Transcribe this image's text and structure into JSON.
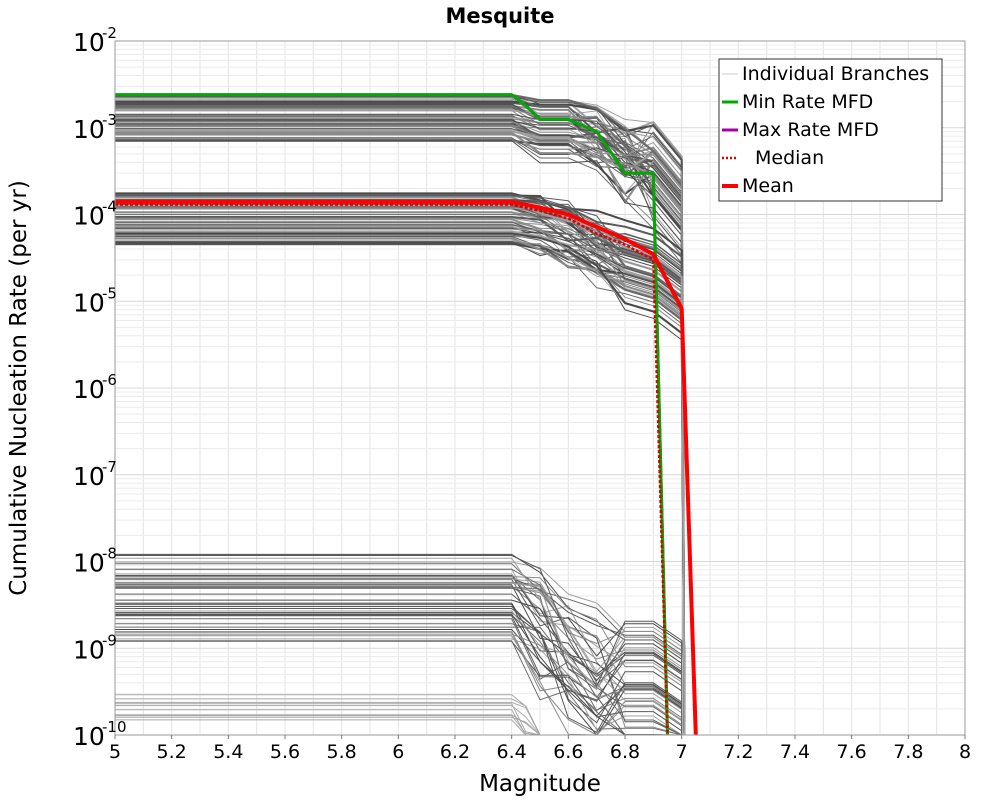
{
  "chart_data": {
    "type": "line",
    "title": "Mesquite",
    "xlabel": "Magnitude",
    "ylabel": "Cumulative Nucleation Rate (per yr)",
    "xlim": [
      5,
      8
    ],
    "ylim": [
      1e-10,
      0.01
    ],
    "y_scale": "log",
    "grid": true,
    "legend_position": "top-right",
    "x_ticks": [
      "5",
      "5.2",
      "5.4",
      "5.6",
      "5.8",
      "6",
      "6.2",
      "6.4",
      "6.6",
      "6.8",
      "7",
      "7.2",
      "7.4",
      "7.6",
      "7.8",
      "8"
    ],
    "y_ticks": [
      {
        "base": "10",
        "exp": "-10",
        "value": 1e-10
      },
      {
        "base": "10",
        "exp": "-9",
        "value": 1e-09
      },
      {
        "base": "10",
        "exp": "-8",
        "value": 1e-08
      },
      {
        "base": "10",
        "exp": "-7",
        "value": 1e-07
      },
      {
        "base": "10",
        "exp": "-6",
        "value": 1e-06
      },
      {
        "base": "10",
        "exp": "-5",
        "value": 1e-05
      },
      {
        "base": "10",
        "exp": "-4",
        "value": 0.0001
      },
      {
        "base": "10",
        "exp": "-3",
        "value": 0.001
      },
      {
        "base": "10",
        "exp": "-2",
        "value": 0.01
      }
    ],
    "legend": [
      {
        "label": "Individual Branches",
        "color": "#c8c8c8",
        "style": "thin"
      },
      {
        "label": "Min Rate MFD",
        "color": "#00aa00",
        "style": "solid"
      },
      {
        "label": "Max Rate MFD",
        "color": "#aa00aa",
        "style": "solid"
      },
      {
        "label": "Median",
        "color": "#dd0000",
        "style": "dotted"
      },
      {
        "label": "Mean",
        "color": "#ff0000",
        "style": "thick"
      }
    ],
    "series": [
      {
        "name": "Max Rate MFD",
        "color": "#aa00aa",
        "x": [
          5.0,
          6.4,
          6.45,
          6.5,
          6.6,
          6.7,
          6.8,
          6.9,
          6.95
        ],
        "values": [
          0.0024,
          0.0024,
          0.0018,
          0.00125,
          0.00125,
          0.0009,
          0.0003,
          0.0003,
          1e-10
        ]
      },
      {
        "name": "Min Rate MFD",
        "color": "#00aa00",
        "x": [
          5.0,
          6.4,
          6.45,
          6.5,
          6.6,
          6.7,
          6.8,
          6.9,
          6.95
        ],
        "values": [
          0.0024,
          0.0024,
          0.0018,
          0.00125,
          0.00125,
          0.0009,
          0.0003,
          0.0003,
          1e-10
        ]
      },
      {
        "name": "Median",
        "color": "#dd0000",
        "x": [
          5.0,
          6.4,
          6.5,
          6.6,
          6.7,
          6.8,
          6.9,
          6.95
        ],
        "values": [
          0.00013,
          0.00013,
          0.00011,
          9e-05,
          6e-05,
          4.5e-05,
          3e-05,
          1e-10
        ]
      },
      {
        "name": "Mean",
        "color": "#ff0000",
        "x": [
          5.0,
          6.4,
          6.5,
          6.6,
          6.7,
          6.8,
          6.9,
          7.0,
          7.05
        ],
        "values": [
          0.00014,
          0.00014,
          0.00012,
          0.0001,
          7.2e-05,
          5.2e-05,
          3.5e-05,
          8.2e-06,
          1e-10
        ]
      }
    ]
  }
}
